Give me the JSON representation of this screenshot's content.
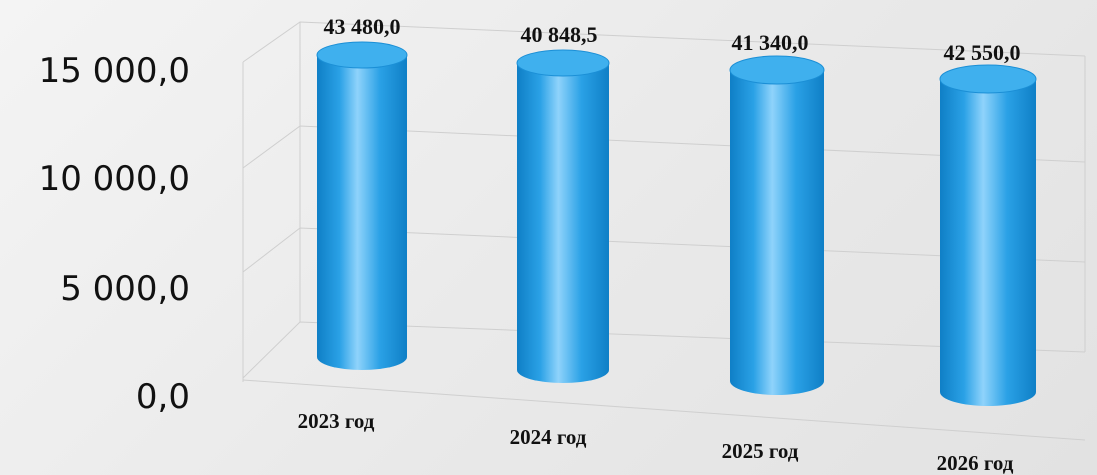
{
  "chart_data": {
    "type": "bar",
    "style": "3d-cylinder",
    "categories": [
      "2023 год",
      "2024 год",
      "2025 год",
      "2026 год"
    ],
    "values": [
      43480.0,
      40848.5,
      41340.0,
      42550.0
    ],
    "data_labels": [
      "43 480,0",
      "40 848,5",
      "41 340,0",
      "42 550,0"
    ],
    "y_ticks": [
      "0,0",
      "5 000,0",
      "10 000,0",
      "15 000,0"
    ],
    "y_tick_values": [
      0,
      5000,
      10000,
      15000
    ],
    "title": "",
    "xlabel": "",
    "ylabel": "",
    "grid": true,
    "legend": "none",
    "colors": {
      "bar": "#2aa1e6",
      "bar_dark": "#0f7fc6",
      "bar_light": "#8fd3fb",
      "top": "#3fb0ee"
    }
  }
}
